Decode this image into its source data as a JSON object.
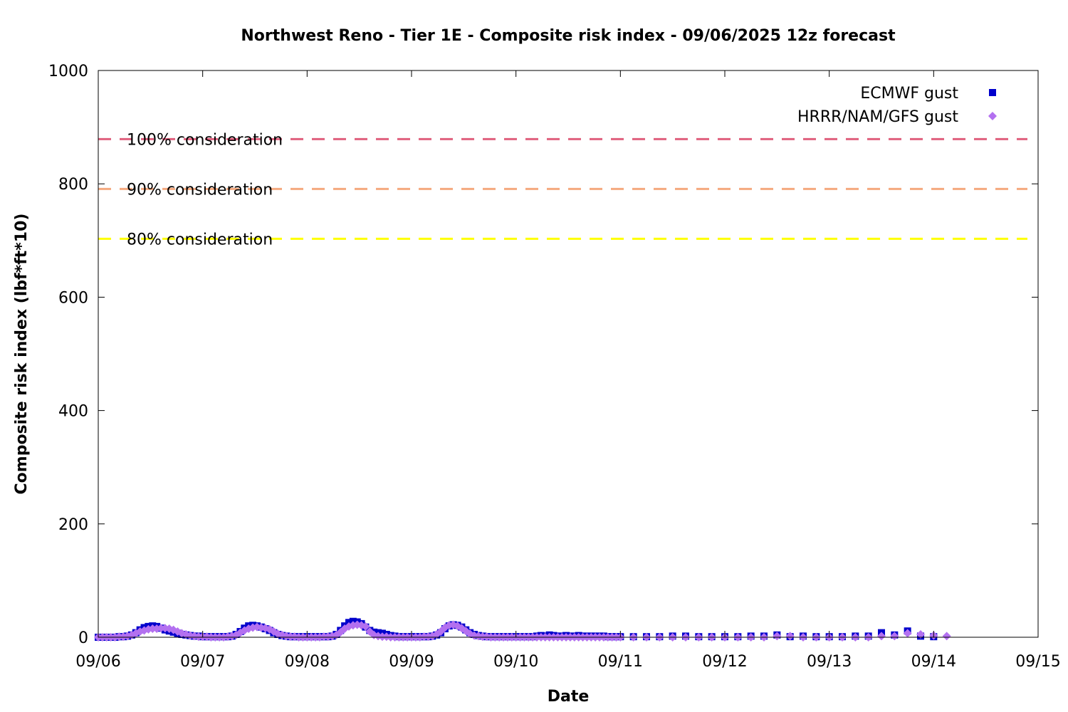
{
  "chart_data": {
    "type": "scatter",
    "title": "Northwest Reno - Tier 1E - Composite risk index - 09/06/2025 12z forecast",
    "xlabel": "Date",
    "ylabel": "Composite risk index (lbf*ft*10)",
    "xlim": [
      "09/06",
      "09/15"
    ],
    "ylim": [
      0,
      1000
    ],
    "x_ticks": [
      "09/06",
      "09/07",
      "09/08",
      "09/09",
      "09/10",
      "09/11",
      "09/12",
      "09/13",
      "09/14",
      "09/15"
    ],
    "y_ticks": [
      "0",
      "200",
      "400",
      "600",
      "800",
      "1000"
    ],
    "legend_position": "top-right",
    "grid": false,
    "thresholds": [
      {
        "label": "100% consideration",
        "value": 879,
        "color": "#e0607e"
      },
      {
        "label": "90% consideration",
        "value": 791,
        "color": "#f5a97f"
      },
      {
        "label": "80% consideration",
        "value": 703,
        "color": "#ffff00"
      }
    ],
    "series": [
      {
        "name": "ECMWF gust",
        "color": "#0000cc",
        "marker": "square",
        "points": [
          [
            6.0,
            0
          ],
          [
            6.04,
            0
          ],
          [
            6.08,
            0
          ],
          [
            6.12,
            0
          ],
          [
            6.16,
            0
          ],
          [
            6.2,
            1
          ],
          [
            6.24,
            1
          ],
          [
            6.28,
            2
          ],
          [
            6.32,
            4
          ],
          [
            6.36,
            8
          ],
          [
            6.4,
            13
          ],
          [
            6.44,
            17
          ],
          [
            6.48,
            19
          ],
          [
            6.52,
            20
          ],
          [
            6.56,
            19
          ],
          [
            6.6,
            16
          ],
          [
            6.64,
            13
          ],
          [
            6.68,
            11
          ],
          [
            6.72,
            9
          ],
          [
            6.76,
            7
          ],
          [
            6.8,
            5
          ],
          [
            6.84,
            4
          ],
          [
            6.88,
            3
          ],
          [
            6.92,
            2
          ],
          [
            6.96,
            2
          ],
          [
            7.0,
            1
          ],
          [
            7.04,
            1
          ],
          [
            7.08,
            1
          ],
          [
            7.12,
            1
          ],
          [
            7.16,
            1
          ],
          [
            7.2,
            1
          ],
          [
            7.24,
            1
          ],
          [
            7.28,
            2
          ],
          [
            7.32,
            5
          ],
          [
            7.36,
            10
          ],
          [
            7.4,
            16
          ],
          [
            7.44,
            20
          ],
          [
            7.48,
            21
          ],
          [
            7.52,
            20
          ],
          [
            7.56,
            18
          ],
          [
            7.6,
            15
          ],
          [
            7.64,
            12
          ],
          [
            7.68,
            8
          ],
          [
            7.72,
            5
          ],
          [
            7.76,
            3
          ],
          [
            7.8,
            2
          ],
          [
            7.84,
            1
          ],
          [
            7.88,
            1
          ],
          [
            7.92,
            1
          ],
          [
            7.96,
            1
          ],
          [
            8.0,
            1
          ],
          [
            8.04,
            1
          ],
          [
            8.08,
            1
          ],
          [
            8.12,
            1
          ],
          [
            8.16,
            1
          ],
          [
            8.2,
            1
          ],
          [
            8.24,
            2
          ],
          [
            8.28,
            5
          ],
          [
            8.32,
            12
          ],
          [
            8.36,
            20
          ],
          [
            8.4,
            26
          ],
          [
            8.44,
            28
          ],
          [
            8.48,
            27
          ],
          [
            8.52,
            24
          ],
          [
            8.56,
            18
          ],
          [
            8.6,
            12
          ],
          [
            8.64,
            9
          ],
          [
            8.68,
            8
          ],
          [
            8.72,
            7
          ],
          [
            8.76,
            5
          ],
          [
            8.8,
            3
          ],
          [
            8.84,
            2
          ],
          [
            8.88,
            1
          ],
          [
            8.92,
            1
          ],
          [
            8.96,
            1
          ],
          [
            9.0,
            1
          ],
          [
            9.04,
            1
          ],
          [
            9.08,
            1
          ],
          [
            9.12,
            1
          ],
          [
            9.16,
            1
          ],
          [
            9.2,
            2
          ],
          [
            9.24,
            4
          ],
          [
            9.28,
            8
          ],
          [
            9.32,
            15
          ],
          [
            9.36,
            20
          ],
          [
            9.4,
            22
          ],
          [
            9.44,
            21
          ],
          [
            9.48,
            18
          ],
          [
            9.52,
            13
          ],
          [
            9.56,
            8
          ],
          [
            9.6,
            5
          ],
          [
            9.64,
            3
          ],
          [
            9.68,
            2
          ],
          [
            9.72,
            1
          ],
          [
            9.76,
            1
          ],
          [
            9.8,
            1
          ],
          [
            9.84,
            1
          ],
          [
            9.88,
            1
          ],
          [
            9.92,
            1
          ],
          [
            9.96,
            1
          ],
          [
            10.0,
            1
          ],
          [
            10.04,
            1
          ],
          [
            10.08,
            1
          ],
          [
            10.12,
            1
          ],
          [
            10.16,
            1
          ],
          [
            10.2,
            2
          ],
          [
            10.24,
            3
          ],
          [
            10.28,
            2
          ],
          [
            10.32,
            4
          ],
          [
            10.36,
            3
          ],
          [
            10.4,
            2
          ],
          [
            10.44,
            2
          ],
          [
            10.48,
            3
          ],
          [
            10.52,
            2
          ],
          [
            10.56,
            2
          ],
          [
            10.6,
            3
          ],
          [
            10.64,
            2
          ],
          [
            10.68,
            2
          ],
          [
            10.72,
            2
          ],
          [
            10.76,
            2
          ],
          [
            10.8,
            2
          ],
          [
            10.84,
            2
          ],
          [
            10.88,
            1
          ],
          [
            10.92,
            1
          ],
          [
            10.96,
            1
          ],
          [
            11.0,
            1
          ],
          [
            11.125,
            1
          ],
          [
            11.25,
            1
          ],
          [
            11.375,
            1
          ],
          [
            11.5,
            2
          ],
          [
            11.625,
            2
          ],
          [
            11.75,
            1
          ],
          [
            11.875,
            1
          ],
          [
            12.0,
            1
          ],
          [
            12.125,
            1
          ],
          [
            12.25,
            2
          ],
          [
            12.375,
            2
          ],
          [
            12.5,
            4
          ],
          [
            12.625,
            1
          ],
          [
            12.75,
            2
          ],
          [
            12.875,
            1
          ],
          [
            13.0,
            1
          ],
          [
            13.125,
            1
          ],
          [
            13.25,
            2
          ],
          [
            13.375,
            2
          ],
          [
            13.5,
            8
          ],
          [
            13.625,
            4
          ],
          [
            13.75,
            11
          ],
          [
            13.875,
            2
          ],
          [
            14.0,
            1
          ]
        ]
      },
      {
        "name": "HRRR/NAM/GFS gust",
        "color": "#b370f0",
        "marker": "diamond",
        "points": [
          [
            6.0,
            0
          ],
          [
            6.04,
            0
          ],
          [
            6.08,
            0
          ],
          [
            6.12,
            0
          ],
          [
            6.16,
            0
          ],
          [
            6.2,
            1
          ],
          [
            6.24,
            1
          ],
          [
            6.28,
            2
          ],
          [
            6.32,
            4
          ],
          [
            6.36,
            7
          ],
          [
            6.4,
            10
          ],
          [
            6.44,
            12
          ],
          [
            6.48,
            14
          ],
          [
            6.52,
            15
          ],
          [
            6.56,
            15
          ],
          [
            6.6,
            16
          ],
          [
            6.64,
            16
          ],
          [
            6.68,
            15
          ],
          [
            6.72,
            13
          ],
          [
            6.76,
            10
          ],
          [
            6.8,
            7
          ],
          [
            6.84,
            5
          ],
          [
            6.88,
            3
          ],
          [
            6.92,
            2
          ],
          [
            6.96,
            1
          ],
          [
            7.0,
            1
          ],
          [
            7.04,
            1
          ],
          [
            7.08,
            0
          ],
          [
            7.12,
            0
          ],
          [
            7.16,
            0
          ],
          [
            7.2,
            0
          ],
          [
            7.24,
            1
          ],
          [
            7.28,
            2
          ],
          [
            7.32,
            4
          ],
          [
            7.36,
            8
          ],
          [
            7.4,
            12
          ],
          [
            7.44,
            15
          ],
          [
            7.48,
            17
          ],
          [
            7.52,
            18
          ],
          [
            7.56,
            17
          ],
          [
            7.6,
            16
          ],
          [
            7.64,
            14
          ],
          [
            7.68,
            10
          ],
          [
            7.72,
            6
          ],
          [
            7.76,
            4
          ],
          [
            7.8,
            2
          ],
          [
            7.84,
            1
          ],
          [
            7.88,
            1
          ],
          [
            7.92,
            0
          ],
          [
            7.96,
            0
          ],
          [
            8.0,
            0
          ],
          [
            8.04,
            0
          ],
          [
            8.08,
            0
          ],
          [
            8.12,
            0
          ],
          [
            8.16,
            1
          ],
          [
            8.2,
            1
          ],
          [
            8.24,
            2
          ],
          [
            8.28,
            4
          ],
          [
            8.32,
            9
          ],
          [
            8.36,
            15
          ],
          [
            8.4,
            19
          ],
          [
            8.44,
            21
          ],
          [
            8.48,
            22
          ],
          [
            8.52,
            21
          ],
          [
            8.56,
            19
          ],
          [
            8.6,
            10
          ],
          [
            8.64,
            4
          ],
          [
            8.68,
            2
          ],
          [
            8.72,
            1
          ],
          [
            8.76,
            1
          ],
          [
            8.8,
            0
          ],
          [
            8.84,
            0
          ],
          [
            8.88,
            0
          ],
          [
            8.92,
            0
          ],
          [
            8.96,
            0
          ],
          [
            9.0,
            0
          ],
          [
            9.04,
            0
          ],
          [
            9.08,
            0
          ],
          [
            9.12,
            1
          ],
          [
            9.16,
            1
          ],
          [
            9.2,
            2
          ],
          [
            9.24,
            5
          ],
          [
            9.28,
            10
          ],
          [
            9.32,
            17
          ],
          [
            9.36,
            21
          ],
          [
            9.4,
            22
          ],
          [
            9.44,
            20
          ],
          [
            9.48,
            16
          ],
          [
            9.52,
            11
          ],
          [
            9.56,
            6
          ],
          [
            9.6,
            3
          ],
          [
            9.64,
            2
          ],
          [
            9.68,
            1
          ],
          [
            9.72,
            1
          ],
          [
            9.76,
            0
          ],
          [
            9.8,
            0
          ],
          [
            9.84,
            0
          ],
          [
            9.88,
            0
          ],
          [
            9.92,
            0
          ],
          [
            9.96,
            0
          ],
          [
            10.0,
            0
          ],
          [
            10.04,
            0
          ],
          [
            10.08,
            0
          ],
          [
            10.12,
            0
          ],
          [
            10.16,
            0
          ],
          [
            10.2,
            0
          ],
          [
            10.24,
            0
          ],
          [
            10.28,
            0
          ],
          [
            10.32,
            0
          ],
          [
            10.36,
            0
          ],
          [
            10.4,
            0
          ],
          [
            10.44,
            0
          ],
          [
            10.48,
            0
          ],
          [
            10.52,
            0
          ],
          [
            10.56,
            0
          ],
          [
            10.6,
            0
          ],
          [
            10.64,
            0
          ],
          [
            10.68,
            0
          ],
          [
            10.72,
            0
          ],
          [
            10.76,
            0
          ],
          [
            10.8,
            0
          ],
          [
            10.84,
            0
          ],
          [
            10.88,
            0
          ],
          [
            10.92,
            0
          ],
          [
            10.96,
            0
          ],
          [
            11.0,
            0
          ],
          [
            11.125,
            0
          ],
          [
            11.25,
            0
          ],
          [
            11.375,
            0
          ],
          [
            11.5,
            0
          ],
          [
            11.625,
            0
          ],
          [
            11.75,
            0
          ],
          [
            11.875,
            0
          ],
          [
            12.0,
            0
          ],
          [
            12.125,
            0
          ],
          [
            12.25,
            0
          ],
          [
            12.375,
            0
          ],
          [
            12.5,
            2
          ],
          [
            12.625,
            2
          ],
          [
            12.75,
            0
          ],
          [
            12.875,
            0
          ],
          [
            13.0,
            0
          ],
          [
            13.125,
            0
          ],
          [
            13.25,
            0
          ],
          [
            13.375,
            0
          ],
          [
            13.5,
            2
          ],
          [
            13.625,
            2
          ],
          [
            13.75,
            7
          ],
          [
            13.875,
            5
          ],
          [
            14.0,
            3
          ],
          [
            14.125,
            2
          ]
        ]
      }
    ]
  }
}
